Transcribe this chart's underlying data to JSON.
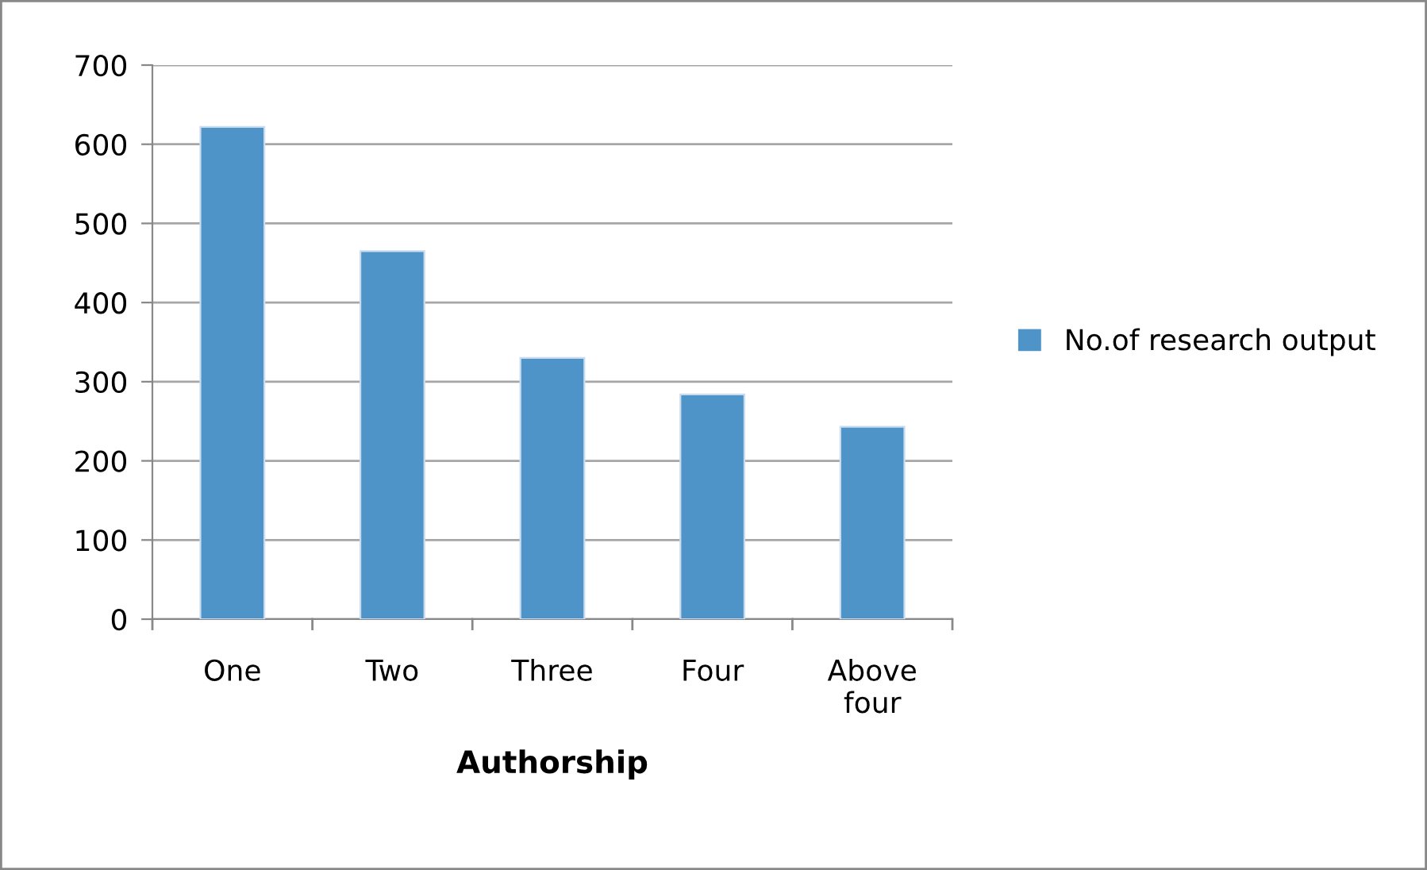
{
  "chart_data": {
    "type": "bar",
    "xlabel": "Authorship",
    "categories": [
      "One",
      "Two",
      "Three",
      "Four",
      "Above four"
    ],
    "series": [
      {
        "name": "No.of research output",
        "color": "#4f94c9",
        "values": [
          622,
          465,
          330,
          284,
          243
        ]
      }
    ],
    "ylim": [
      0,
      700
    ],
    "yticks": [
      0,
      100,
      200,
      300,
      400,
      500,
      600,
      700
    ],
    "grid": "y",
    "legend": "right"
  }
}
